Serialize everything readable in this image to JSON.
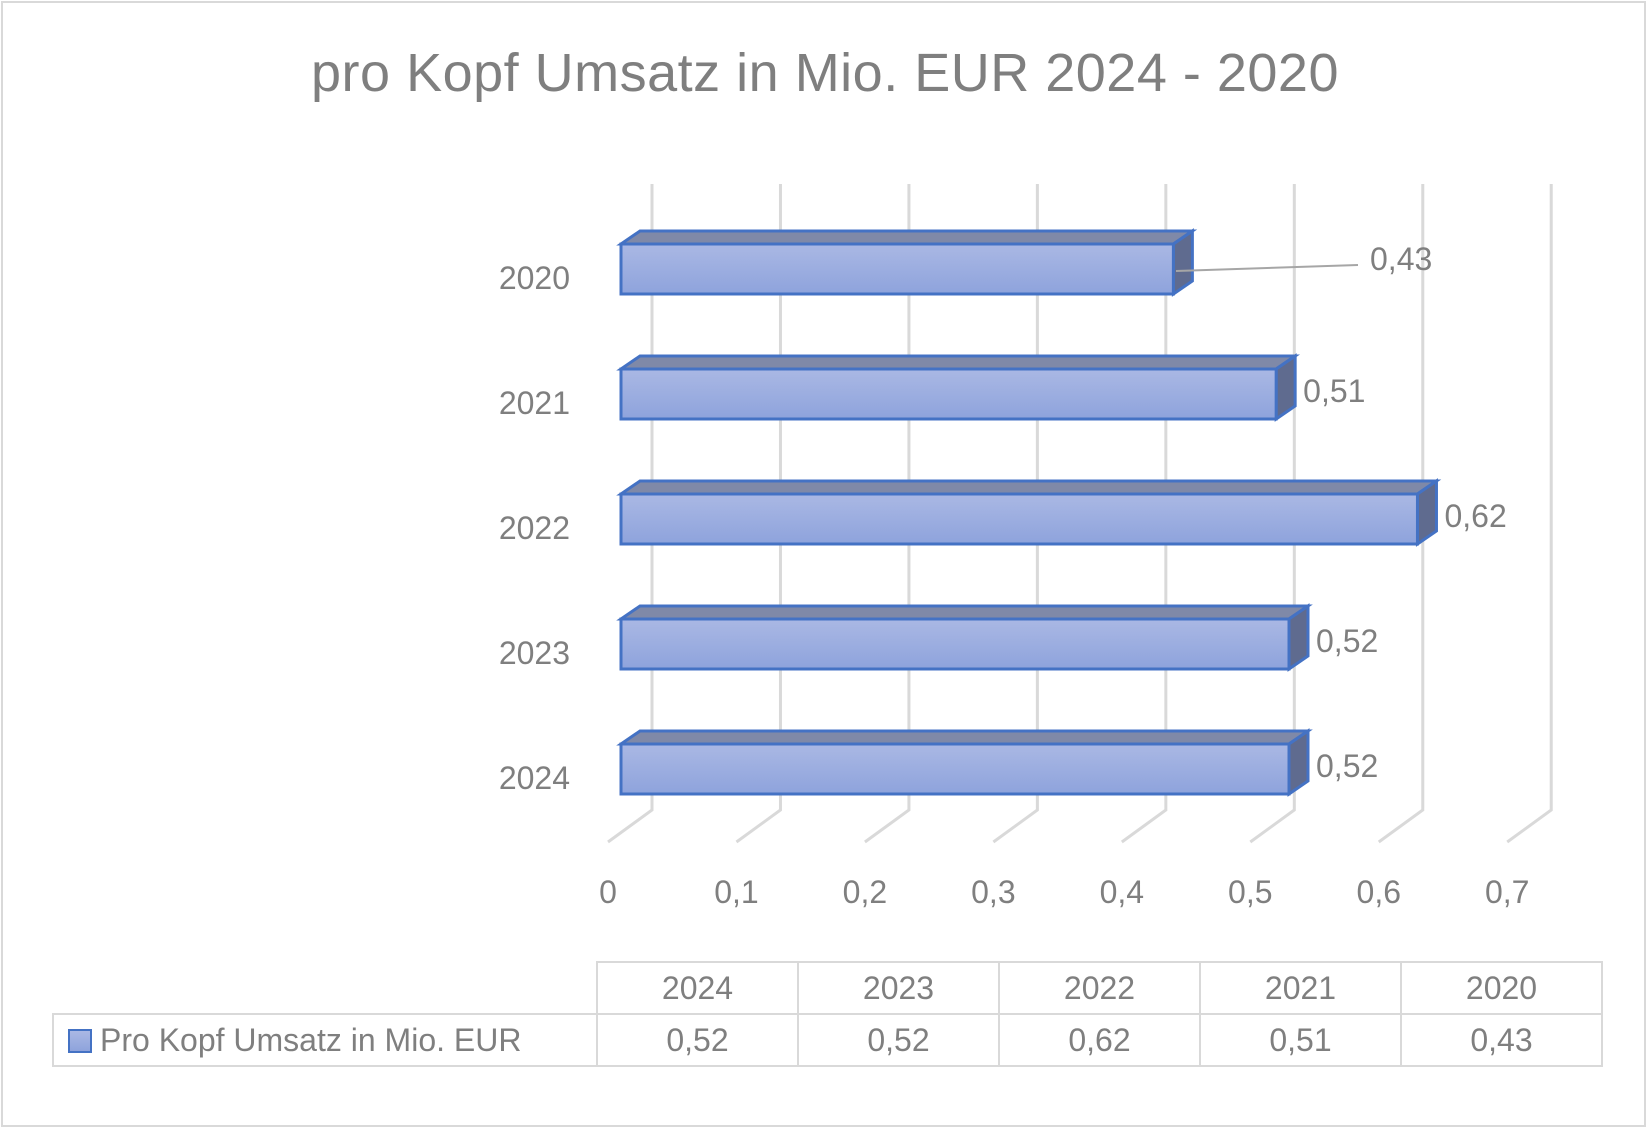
{
  "chart_data": {
    "type": "bar",
    "orientation": "horizontal",
    "style": "3d-clustered-bar",
    "title": "pro Kopf Umsatz in Mio. EUR 2024 - 2020",
    "categories": [
      "2024",
      "2023",
      "2022",
      "2021",
      "2020"
    ],
    "series": [
      {
        "name": "Pro Kopf Umsatz in Mio. EUR",
        "values": [
          0.52,
          0.52,
          0.62,
          0.51,
          0.43
        ],
        "color": "#8ea3dc"
      }
    ],
    "data_labels": [
      "0,52",
      "0,52",
      "0,62",
      "0,51",
      "0,43"
    ],
    "xlabel": "",
    "ylabel": "",
    "xlim": [
      0,
      0.7
    ],
    "xticks": [
      "0",
      "0,1",
      "0,2",
      "0,3",
      "0,4",
      "0,5",
      "0,6",
      "0,7"
    ],
    "grid": true,
    "legend_position": "data-table",
    "data_table": {
      "headers": [
        "2024",
        "2023",
        "2022",
        "2021",
        "2020"
      ],
      "row_label": "Pro Kopf Umsatz in Mio. EUR",
      "values": [
        "0,52",
        "0,52",
        "0,62",
        "0,51",
        "0,43"
      ]
    }
  },
  "colors": {
    "bar_front_top": "#aab8e4",
    "bar_front_bottom": "#8ea3dc",
    "bar_top_face": "#7f89a8",
    "bar_side_face": "#5f6b8f",
    "bar_outline": "#4472c4",
    "grid": "#d9d9d9",
    "text": "#7f7f7f"
  }
}
